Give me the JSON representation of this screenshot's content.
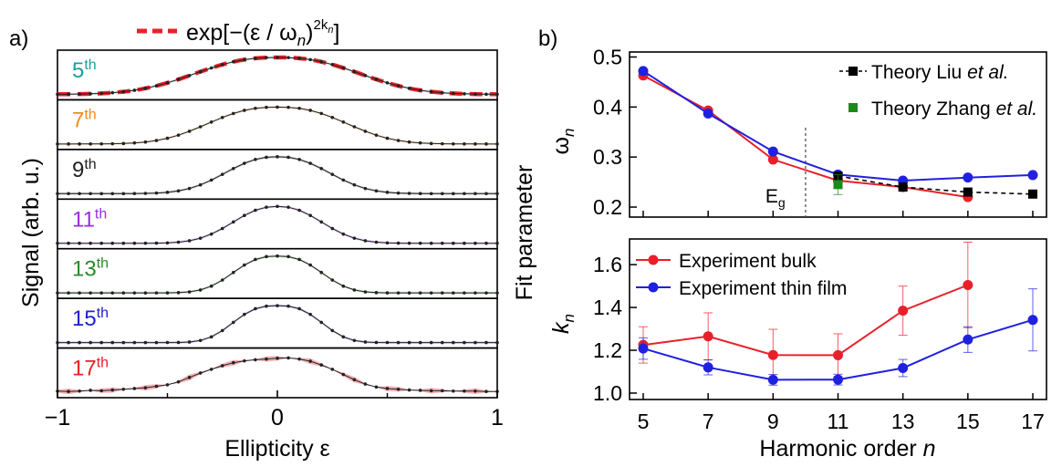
{
  "figure": {
    "panel_a_label": "a)",
    "panel_b_label": "b)"
  },
  "chart_data": [
    {
      "type": "line",
      "panel": "a",
      "legend": {
        "label_main": "exp[−(ε / ω",
        "label_sub": "n",
        "label_close": ")",
        "label_sup": "2k",
        "label_sup_sub": "n",
        "label_end": "]",
        "line_style": "dashed",
        "color": "#e8202a",
        "placement": "top"
      },
      "xlabel": "Ellipticity  ε",
      "ylabel": "Signal (arb. u.)",
      "xlim": [
        -1,
        1
      ],
      "xticks": [
        "−1",
        "0",
        "1"
      ],
      "x_grid": [
        -1.0,
        -0.95,
        -0.9,
        -0.85,
        -0.8,
        -0.75,
        -0.7,
        -0.65,
        -0.6,
        -0.55,
        -0.5,
        -0.45,
        -0.4,
        -0.35,
        -0.3,
        -0.25,
        -0.2,
        -0.15,
        -0.1,
        -0.05,
        0,
        0.05,
        0.1,
        0.15,
        0.2,
        0.25,
        0.3,
        0.35,
        0.4,
        0.45,
        0.5,
        0.55,
        0.6,
        0.65,
        0.7,
        0.75,
        0.8,
        0.85,
        0.9,
        0.95,
        1.0
      ],
      "harmonics": [
        {
          "order": "5",
          "suffix": "th",
          "color": "#1aa0a0",
          "width": 0.47,
          "k": 1.22,
          "has_fit": true
        },
        {
          "order": "7",
          "suffix": "th",
          "color": "#f08a1c",
          "width": 0.39,
          "k": 1.25,
          "has_fit": false
        },
        {
          "order": "9",
          "suffix": "th",
          "color": "#222222",
          "width": 0.3,
          "k": 1.18,
          "has_fit": false
        },
        {
          "order": "11",
          "suffix": "th",
          "color": "#9a2ee0",
          "width": 0.26,
          "k": 1.15,
          "has_fit": false
        },
        {
          "order": "13",
          "suffix": "th",
          "color": "#2a8a2a",
          "width": 0.245,
          "k": 1.3,
          "has_fit": false
        },
        {
          "order": "15",
          "suffix": "th",
          "color": "#2020d0",
          "width": 0.24,
          "k": 1.4,
          "has_fit": false
        },
        {
          "order": "17",
          "suffix": "th",
          "color": "#e8202a",
          "width": 0.25,
          "k": 1.3,
          "has_fit": false,
          "noisy": true,
          "values": [
            0.03,
            0.02,
            0.03,
            0.05,
            0.04,
            0.06,
            0.08,
            0.1,
            0.12,
            0.16,
            0.2,
            0.28,
            0.4,
            0.52,
            0.62,
            0.72,
            0.8,
            0.85,
            0.88,
            0.9,
            0.92,
            0.93,
            0.9,
            0.84,
            0.74,
            0.62,
            0.48,
            0.34,
            0.22,
            0.14,
            0.1,
            0.08,
            0.06,
            0.05,
            0.04,
            0.04,
            0.03,
            0.03,
            0.03,
            0.02,
            0.02
          ]
        }
      ]
    },
    {
      "type": "line",
      "panel": "b-top",
      "ylabel_main": "Fit parameter",
      "ylabel": "ω",
      "ylabel_sub": "n",
      "x": [
        5,
        7,
        9,
        11,
        13,
        15,
        17
      ],
      "ylim": [
        0.18,
        0.51
      ],
      "yticks": [
        "0.2",
        "0.3",
        "0.4",
        "0.5"
      ],
      "annotation": {
        "text": "E",
        "sub": "g",
        "x": 10
      },
      "series": [
        {
          "name": "Experiment bulk",
          "color": "#e8202a",
          "x": [
            5,
            7,
            9,
            11,
            13,
            15
          ],
          "values": [
            0.463,
            0.393,
            0.295,
            0.253,
            0.24,
            0.22
          ]
        },
        {
          "name": "Experiment thin film",
          "color": "#2020e0",
          "x": [
            5,
            7,
            9,
            11,
            13,
            15,
            17
          ],
          "values": [
            0.472,
            0.387,
            0.311,
            0.265,
            0.253,
            0.259,
            0.264
          ]
        },
        {
          "name": "Theory Liu et al.",
          "name_main": "Theory Liu ",
          "name_em": "et al.",
          "color": "#000000",
          "dashed": true,
          "x": [
            11,
            13,
            15,
            17
          ],
          "values": [
            0.262,
            0.24,
            0.23,
            0.226
          ]
        },
        {
          "name": "Theory Zhang et al.",
          "name_main": "Theory Zhang ",
          "name_em": "et al.",
          "color": "#1a8a1a",
          "x": [
            11
          ],
          "values": [
            0.245
          ],
          "errors": [
            0.02
          ]
        }
      ]
    },
    {
      "type": "line",
      "panel": "b-bottom",
      "xlabel_main": "Harmonic order ",
      "xlabel_em": "n",
      "ylabel": "k",
      "ylabel_sub": "n",
      "x": [
        5,
        7,
        9,
        11,
        13,
        15,
        17
      ],
      "xticks": [
        "5",
        "7",
        "9",
        "11",
        "13",
        "15",
        "17"
      ],
      "ylim": [
        0.97,
        1.72
      ],
      "yticks": [
        "1.0",
        "1.2",
        "1.4",
        "1.6"
      ],
      "series": [
        {
          "name": "Experiment bulk",
          "color": "#e8202a",
          "x": [
            5,
            7,
            9,
            11,
            13,
            15
          ],
          "values": [
            1.225,
            1.265,
            1.178,
            1.177,
            1.385,
            1.505
          ],
          "errors": [
            0.085,
            0.11,
            0.12,
            0.1,
            0.115,
            0.2
          ]
        },
        {
          "name": "Experiment thin film",
          "color": "#2020e0",
          "x": [
            5,
            7,
            9,
            11,
            13,
            15,
            17
          ],
          "values": [
            1.208,
            1.12,
            1.062,
            1.063,
            1.117,
            1.25,
            1.342
          ],
          "errors": [
            0.05,
            0.035,
            0.025,
            0.025,
            0.04,
            0.06,
            0.145
          ]
        }
      ]
    }
  ]
}
